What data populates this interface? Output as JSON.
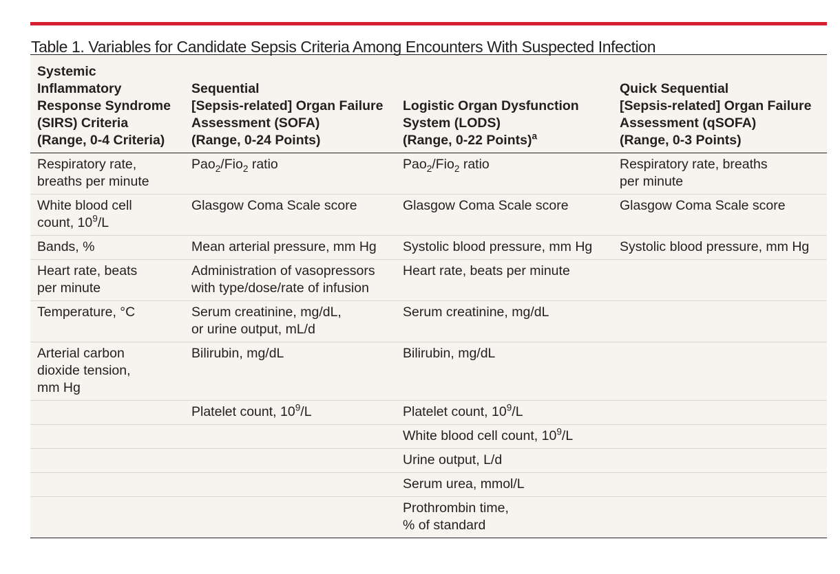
{
  "title": "Table 1. Variables for Candidate Sepsis Criteria Among Encounters With Suspected Infection",
  "headers": [
    [
      "Systemic",
      "Inflammatory",
      "Response Syndrome",
      "(SIRS) Criteria",
      "(Range, 0-4 Criteria)"
    ],
    [
      "Sequential",
      "[Sepsis-related] Organ Failure",
      "Assessment (SOFA)",
      "(Range, 0-24 Points)"
    ],
    [
      "Logistic Organ Dysfunction",
      "System (LODS)",
      "(Range, 0-22 Points)"
    ],
    [
      "Quick Sequential",
      "[Sepsis-related] Organ Failure",
      "Assessment (qSOFA)",
      "(Range, 0-3 Points)"
    ]
  ],
  "header_footnote": "a",
  "rows": [
    [
      [
        "Respiratory rate,",
        "breaths per minute"
      ],
      [
        {
          "pre": "Pao",
          "sub": "2",
          "mid": "/Fio",
          "sub2": "2",
          "post": " ratio"
        }
      ],
      [
        {
          "pre": "Pao",
          "sub": "2",
          "mid": "/Fio",
          "sub2": "2",
          "post": " ratio"
        }
      ],
      [
        "Respiratory rate, breaths",
        "per minute"
      ]
    ],
    [
      [
        "White blood cell",
        {
          "pre": "count, 10",
          "sup": "9",
          "post": "/L"
        }
      ],
      [
        "Glasgow Coma Scale score"
      ],
      [
        "Glasgow Coma Scale score"
      ],
      [
        "Glasgow Coma Scale score"
      ]
    ],
    [
      [
        "Bands, %"
      ],
      [
        "Mean arterial pressure, mm Hg"
      ],
      [
        "Systolic blood pressure, mm Hg"
      ],
      [
        "Systolic blood pressure, mm Hg"
      ]
    ],
    [
      [
        "Heart rate, beats",
        "per minute"
      ],
      [
        "Administration of vasopressors",
        "with type/dose/rate of infusion"
      ],
      [
        "Heart rate, beats per minute"
      ],
      []
    ],
    [
      [
        "Temperature, °C"
      ],
      [
        "Serum creatinine, mg/dL,",
        "or urine output, mL/d"
      ],
      [
        "Serum creatinine, mg/dL"
      ],
      []
    ],
    [
      [
        "Arterial carbon",
        "dioxide tension,",
        "mm Hg"
      ],
      [
        "Bilirubin, mg/dL"
      ],
      [
        "Bilirubin, mg/dL"
      ],
      []
    ],
    [
      [],
      [
        {
          "pre": "Platelet count, 10",
          "sup": "9",
          "post": "/L"
        }
      ],
      [
        {
          "pre": "Platelet count, 10",
          "sup": "9",
          "post": "/L"
        }
      ],
      []
    ],
    [
      [],
      [],
      [
        {
          "pre": "White blood cell count, 10",
          "sup": "9",
          "post": "/L"
        }
      ],
      []
    ],
    [
      [],
      [],
      [
        "Urine output, L/d"
      ],
      []
    ],
    [
      [],
      [],
      [
        "Serum urea, mmol/L"
      ],
      []
    ],
    [
      [],
      [],
      [
        "Prothrombin time,",
        "% of standard"
      ],
      []
    ]
  ]
}
